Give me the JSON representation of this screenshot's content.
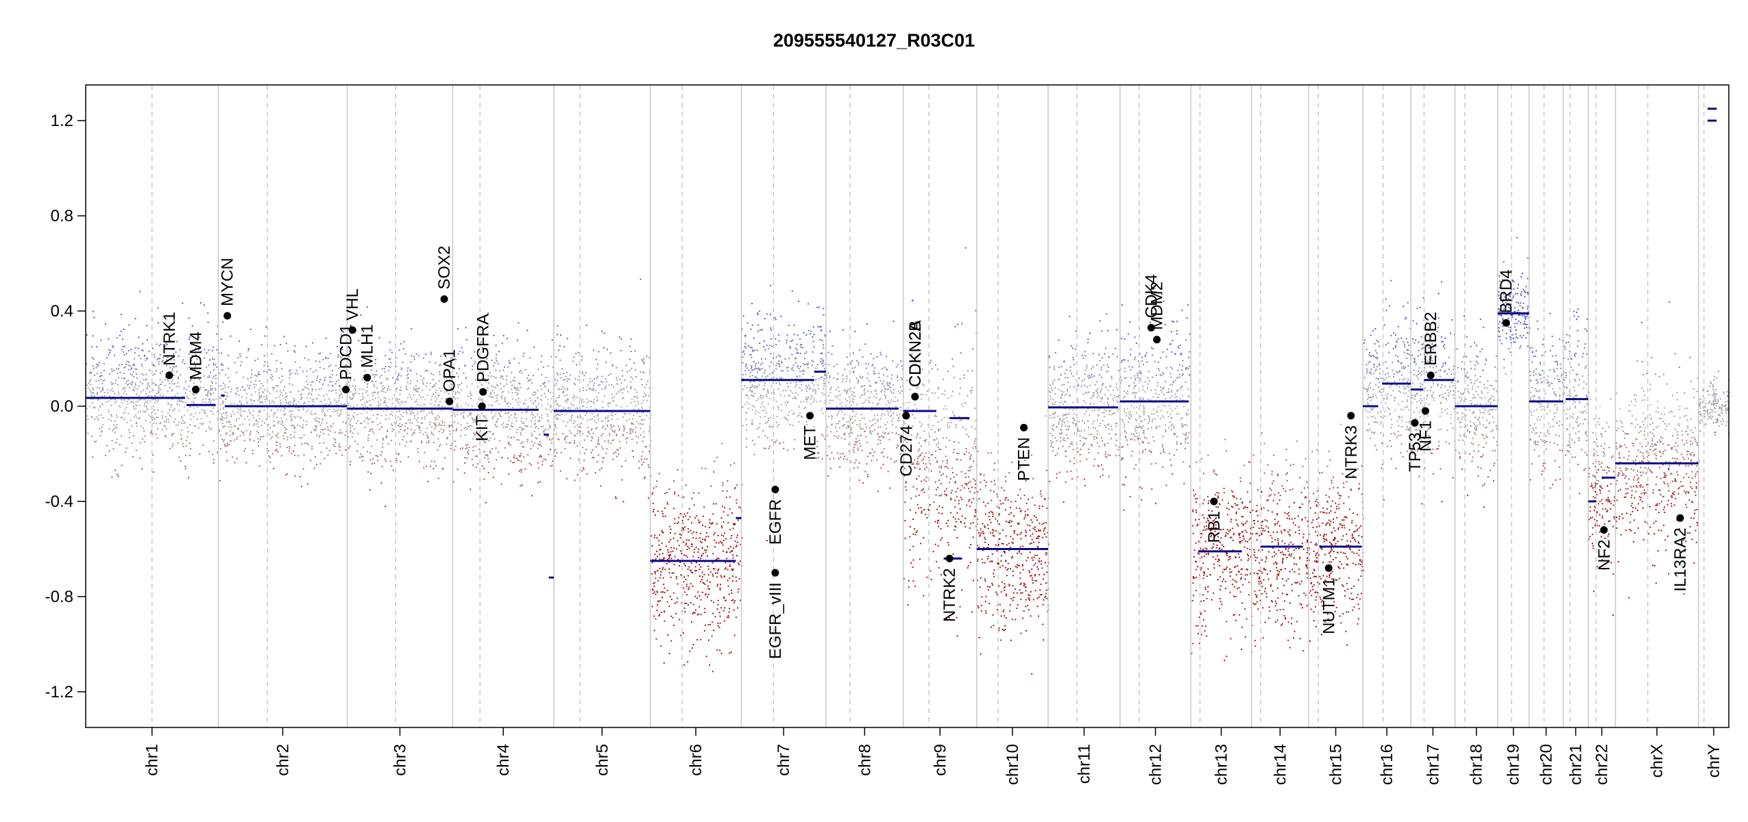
{
  "chart_data": {
    "type": "scatter",
    "title": "209555540127_R03C01",
    "xlabel": "",
    "ylabel": "",
    "ylim": [
      -1.35,
      1.35
    ],
    "yticks": [
      -1.2,
      -0.8,
      -0.4,
      0.0,
      0.4,
      0.8,
      1.2
    ],
    "ytick_labels": [
      "-1.2",
      "-0.8",
      "-0.4",
      "0.0",
      "0.4",
      "0.8",
      "1.2"
    ],
    "grid": false,
    "legend": "none",
    "colors": {
      "gain": "#5b63b8",
      "neutral": "#b3b3b3",
      "loss": "#a01818",
      "segment": "#0a0a8a",
      "gene": "#000000",
      "boundary": "#c8c8c8"
    },
    "chromosomes": [
      {
        "name": "chr1",
        "length": 249,
        "centromere": 0.5
      },
      {
        "name": "chr2",
        "length": 242,
        "centromere": 0.38
      },
      {
        "name": "chr3",
        "length": 198,
        "centromere": 0.46
      },
      {
        "name": "chr4",
        "length": 190,
        "centromere": 0.27
      },
      {
        "name": "chr5",
        "length": 181,
        "centromere": 0.27
      },
      {
        "name": "chr6",
        "length": 171,
        "centromere": 0.35
      },
      {
        "name": "chr7",
        "length": 159,
        "centromere": 0.38
      },
      {
        "name": "chr8",
        "length": 145,
        "centromere": 0.31
      },
      {
        "name": "chr9",
        "length": 138,
        "centromere": 0.35
      },
      {
        "name": "chr10",
        "length": 134,
        "centromere": 0.3
      },
      {
        "name": "chr11",
        "length": 135,
        "centromere": 0.4
      },
      {
        "name": "chr12",
        "length": 133,
        "centromere": 0.27
      },
      {
        "name": "chr13",
        "length": 114,
        "centromere": 0.15
      },
      {
        "name": "chr14",
        "length": 107,
        "centromere": 0.16
      },
      {
        "name": "chr15",
        "length": 102,
        "centromere": 0.18
      },
      {
        "name": "chr16",
        "length": 90,
        "centromere": 0.42
      },
      {
        "name": "chr17",
        "length": 83,
        "centromere": 0.3
      },
      {
        "name": "chr18",
        "length": 80,
        "centromere": 0.23
      },
      {
        "name": "chr19",
        "length": 59,
        "centromere": 0.44
      },
      {
        "name": "chr20",
        "length": 64,
        "centromere": 0.44
      },
      {
        "name": "chr21",
        "length": 47,
        "centromere": 0.27
      },
      {
        "name": "chr22",
        "length": 51,
        "centromere": 0.29
      },
      {
        "name": "chrX",
        "length": 156,
        "centromere": 0.39
      },
      {
        "name": "chrY",
        "length": 57,
        "centromere": 0.18
      }
    ],
    "segments": [
      {
        "chr": "chr1",
        "start": 0.0,
        "end": 0.75,
        "value": 0.035
      },
      {
        "chr": "chr1",
        "start": 0.76,
        "end": 0.98,
        "value": 0.005
      },
      {
        "chr": "chr2",
        "start": 0.02,
        "end": 0.05,
        "value": 0.045
      },
      {
        "chr": "chr2",
        "start": 0.05,
        "end": 1.0,
        "value": 0.0
      },
      {
        "chr": "chr3",
        "start": 0.0,
        "end": 1.0,
        "value": -0.01
      },
      {
        "chr": "chr4",
        "start": 0.0,
        "end": 0.85,
        "value": -0.015
      },
      {
        "chr": "chr4",
        "start": 0.9,
        "end": 0.95,
        "value": -0.12
      },
      {
        "chr": "chr4",
        "start": 0.95,
        "end": 1.0,
        "value": -0.72
      },
      {
        "chr": "chr5",
        "start": 0.0,
        "end": 1.0,
        "value": -0.02
      },
      {
        "chr": "chr6",
        "start": 0.0,
        "end": 0.94,
        "value": -0.65
      },
      {
        "chr": "chr6",
        "start": 0.94,
        "end": 1.0,
        "value": -0.47
      },
      {
        "chr": "chr7",
        "start": 0.0,
        "end": 0.86,
        "value": 0.11
      },
      {
        "chr": "chr7",
        "start": 0.86,
        "end": 1.0,
        "value": 0.145
      },
      {
        "chr": "chr8",
        "start": 0.0,
        "end": 0.94,
        "value": -0.01
      },
      {
        "chr": "chr9",
        "start": 0.0,
        "end": 0.45,
        "value": -0.02
      },
      {
        "chr": "chr9",
        "start": 0.63,
        "end": 0.9,
        "value": -0.05
      },
      {
        "chr": "chr9",
        "start": 0.55,
        "end": 0.8,
        "value": -0.64
      },
      {
        "chr": "chr10",
        "start": 0.0,
        "end": 1.0,
        "value": -0.6
      },
      {
        "chr": "chr11",
        "start": 0.0,
        "end": 0.97,
        "value": -0.005
      },
      {
        "chr": "chr12",
        "start": 0.0,
        "end": 0.97,
        "value": 0.02
      },
      {
        "chr": "chr13",
        "start": 0.12,
        "end": 0.84,
        "value": -0.61
      },
      {
        "chr": "chr14",
        "start": 0.16,
        "end": 0.9,
        "value": -0.59
      },
      {
        "chr": "chr15",
        "start": 0.2,
        "end": 0.98,
        "value": -0.59
      },
      {
        "chr": "chr16",
        "start": 0.0,
        "end": 0.32,
        "value": 0.0
      },
      {
        "chr": "chr16",
        "start": 0.4,
        "end": 1.0,
        "value": 0.095
      },
      {
        "chr": "chr17",
        "start": 0.0,
        "end": 0.28,
        "value": 0.07
      },
      {
        "chr": "chr17",
        "start": 0.3,
        "end": 0.98,
        "value": 0.11
      },
      {
        "chr": "chr18",
        "start": 0.0,
        "end": 1.0,
        "value": 0.0
      },
      {
        "chr": "chr19",
        "start": 0.0,
        "end": 1.0,
        "value": 0.39
      },
      {
        "chr": "chr20",
        "start": 0.0,
        "end": 1.0,
        "value": 0.02
      },
      {
        "chr": "chr21",
        "start": 0.1,
        "end": 1.0,
        "value": 0.03
      },
      {
        "chr": "chr22",
        "start": 0.0,
        "end": 0.3,
        "value": -0.4
      },
      {
        "chr": "chr22",
        "start": 0.5,
        "end": 1.0,
        "value": -0.3
      },
      {
        "chr": "chrX",
        "start": 0.0,
        "end": 1.0,
        "value": -0.24
      },
      {
        "chr": "chrY",
        "start": 0.3,
        "end": 0.6,
        "value": 1.25
      },
      {
        "chr": "chrY",
        "start": 0.3,
        "end": 0.6,
        "value": 1.2
      }
    ],
    "genes": [
      {
        "name": "NTRK1",
        "chr": "chr1",
        "pos": 0.63,
        "value": 0.13
      },
      {
        "name": "MDM4",
        "chr": "chr1",
        "pos": 0.83,
        "value": 0.07
      },
      {
        "name": "MYCN",
        "chr": "chr2",
        "pos": 0.07,
        "value": 0.38
      },
      {
        "name": "PDCD1",
        "chr": "chr2",
        "pos": 0.99,
        "value": 0.07
      },
      {
        "name": "VHL",
        "chr": "chr3",
        "pos": 0.05,
        "value": 0.32
      },
      {
        "name": "MLH1",
        "chr": "chr3",
        "pos": 0.19,
        "value": 0.12
      },
      {
        "name": "SOX2",
        "chr": "chr3",
        "pos": 0.92,
        "value": 0.45
      },
      {
        "name": "OPA1",
        "chr": "chr3",
        "pos": 0.97,
        "value": 0.02
      },
      {
        "name": "PDGFRA",
        "chr": "chr4",
        "pos": 0.3,
        "value": 0.06
      },
      {
        "name": "KIT",
        "chr": "chr4",
        "pos": 0.29,
        "value": 0.0
      },
      {
        "name": "EGFR",
        "chr": "chr7",
        "pos": 0.4,
        "value": -0.35
      },
      {
        "name": "EGFR_vIII",
        "chr": "chr7",
        "pos": 0.4,
        "value": -0.7
      },
      {
        "name": "MET",
        "chr": "chr7",
        "pos": 0.81,
        "value": -0.04
      },
      {
        "name": "CD274",
        "chr": "chr9",
        "pos": 0.04,
        "value": -0.04
      },
      {
        "name": "CDKN2A",
        "chr": "chr9",
        "pos": 0.16,
        "value": 0.04
      },
      {
        "name": "CDKN2B",
        "chr": "chr9",
        "pos": 0.16,
        "value": 0.04
      },
      {
        "name": "NTRK2",
        "chr": "chr9",
        "pos": 0.63,
        "value": -0.64
      },
      {
        "name": "PTEN",
        "chr": "chr10",
        "pos": 0.66,
        "value": -0.09
      },
      {
        "name": "CDK4",
        "chr": "chr12",
        "pos": 0.44,
        "value": 0.33
      },
      {
        "name": "MDM2",
        "chr": "chr12",
        "pos": 0.52,
        "value": 0.28
      },
      {
        "name": "RB1",
        "chr": "chr13",
        "pos": 0.38,
        "value": -0.4
      },
      {
        "name": "NUTM1",
        "chr": "chr15",
        "pos": 0.37,
        "value": -0.68
      },
      {
        "name": "NTRK3",
        "chr": "chr15",
        "pos": 0.78,
        "value": -0.04
      },
      {
        "name": "TP53",
        "chr": "chr17",
        "pos": 0.09,
        "value": -0.07
      },
      {
        "name": "NF1",
        "chr": "chr17",
        "pos": 0.33,
        "value": -0.02
      },
      {
        "name": "ERBB2",
        "chr": "chr17",
        "pos": 0.45,
        "value": 0.13
      },
      {
        "name": "BRD4",
        "chr": "chr19",
        "pos": 0.27,
        "value": 0.35
      },
      {
        "name": "NF2",
        "chr": "chr22",
        "pos": 0.58,
        "value": -0.52
      },
      {
        "name": "IL13RA2",
        "chr": "chrX",
        "pos": 0.78,
        "value": -0.47
      }
    ],
    "profile": [
      {
        "chr": "chr1",
        "mean": 0.05,
        "sd": 0.13
      },
      {
        "chr": "chr2",
        "mean": 0.0,
        "sd": 0.12
      },
      {
        "chr": "chr3",
        "mean": -0.01,
        "sd": 0.12
      },
      {
        "chr": "chr4",
        "mean": -0.02,
        "sd": 0.13
      },
      {
        "chr": "chr5",
        "mean": -0.02,
        "sd": 0.13
      },
      {
        "chr": "chr6",
        "mean": -0.65,
        "sd": 0.17
      },
      {
        "chr": "chr7",
        "mean": 0.11,
        "sd": 0.14
      },
      {
        "chr": "chr8",
        "mean": -0.01,
        "sd": 0.13
      },
      {
        "chr": "chr9",
        "mean": -0.25,
        "sd": 0.24
      },
      {
        "chr": "chr10",
        "mean": -0.6,
        "sd": 0.17
      },
      {
        "chr": "chr11",
        "mean": 0.0,
        "sd": 0.14
      },
      {
        "chr": "chr12",
        "mean": 0.02,
        "sd": 0.15
      },
      {
        "chr": "chr13",
        "mean": -0.61,
        "sd": 0.17
      },
      {
        "chr": "chr14",
        "mean": -0.59,
        "sd": 0.18
      },
      {
        "chr": "chr15",
        "mean": -0.59,
        "sd": 0.17
      },
      {
        "chr": "chr16",
        "mean": 0.06,
        "sd": 0.15
      },
      {
        "chr": "chr17",
        "mean": 0.1,
        "sd": 0.15
      },
      {
        "chr": "chr18",
        "mean": 0.0,
        "sd": 0.14
      },
      {
        "chr": "chr19",
        "mean": 0.39,
        "sd": 0.09
      },
      {
        "chr": "chr20",
        "mean": 0.02,
        "sd": 0.15
      },
      {
        "chr": "chr21",
        "mean": 0.03,
        "sd": 0.16
      },
      {
        "chr": "chr22",
        "mean": -0.35,
        "sd": 0.17
      },
      {
        "chr": "chrX",
        "mean": -0.24,
        "sd": 0.18
      },
      {
        "chr": "chrY",
        "mean": 0.0,
        "sd": 0.05
      }
    ]
  }
}
